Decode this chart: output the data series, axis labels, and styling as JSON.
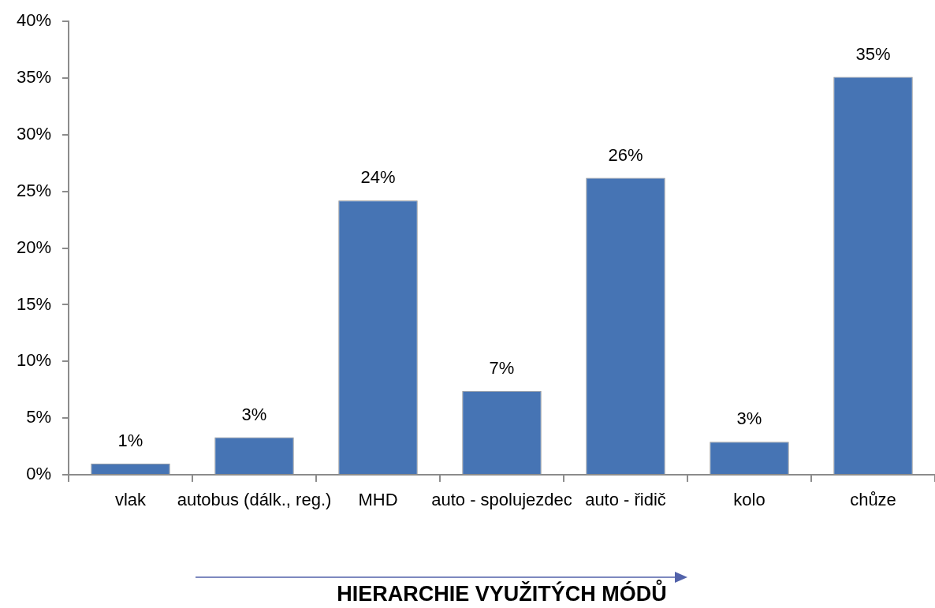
{
  "chart_data": {
    "type": "bar",
    "xlabel": "HIERARCHIE VYUŽITÝCH MÓDŮ",
    "categories": [
      "vlak",
      "autobus (dálk., reg.)",
      "MHD",
      "auto - spolujezdec",
      "auto - řidič",
      "kolo",
      "chůze"
    ],
    "values": [
      1.0,
      3.3,
      24.2,
      7.4,
      26.2,
      2.9,
      35.1
    ],
    "value_labels": [
      "1%",
      "3%",
      "24%",
      "7%",
      "26%",
      "3%",
      "35%"
    ],
    "color": "#4674b4",
    "ylim": [
      0,
      40
    ],
    "yticks": [
      {
        "value": 0,
        "label": "0%"
      },
      {
        "value": 5,
        "label": "5%"
      },
      {
        "value": 10,
        "label": "10%"
      },
      {
        "value": 15,
        "label": "15%"
      },
      {
        "value": 20,
        "label": "20%"
      },
      {
        "value": 25,
        "label": "25%"
      },
      {
        "value": 30,
        "label": "30%"
      },
      {
        "value": 35,
        "label": "35%"
      },
      {
        "value": 40,
        "label": "40%"
      }
    ]
  }
}
